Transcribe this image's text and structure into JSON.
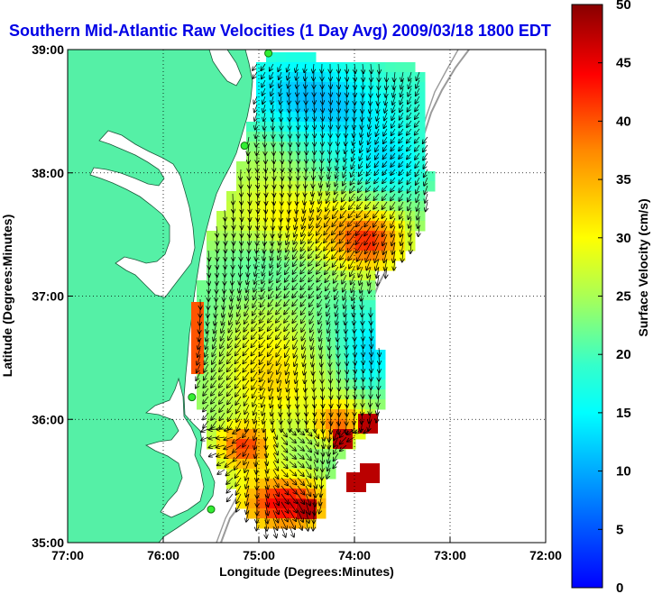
{
  "title": "Southern Mid-Atlantic Raw Velocities (1 Day Avg) 2009/03/18 1800 EDT",
  "x_axis": {
    "label": "Longitude (Degrees:Minutes)",
    "ticks": [
      "77:00",
      "76:00",
      "75:00",
      "74:00",
      "73:00",
      "72:00"
    ],
    "range": [
      -77,
      -72
    ]
  },
  "y_axis": {
    "label": "Latitude (Degrees:Minutes)",
    "ticks": [
      "39:00",
      "38:00",
      "37:00",
      "36:00",
      "35:00"
    ],
    "range": [
      35,
      39
    ]
  },
  "colorbar": {
    "label": "Surface Velocity (cm/s)",
    "ticks": [
      "50",
      "45",
      "40",
      "35",
      "30",
      "25",
      "20",
      "15",
      "10",
      "5",
      "0"
    ],
    "range": [
      0,
      50
    ],
    "colormap": "jet"
  },
  "colors": {
    "land": "#55f0a6",
    "water": "#ffffff",
    "title": "#0000e6",
    "grid": "#000000",
    "station": "#33ee33"
  },
  "stations": [
    {
      "lon": -74.9,
      "lat": 38.97
    },
    {
      "lon": -75.15,
      "lat": 38.22
    },
    {
      "lon": -75.7,
      "lat": 36.18
    },
    {
      "lon": -75.5,
      "lat": 35.27
    }
  ]
}
